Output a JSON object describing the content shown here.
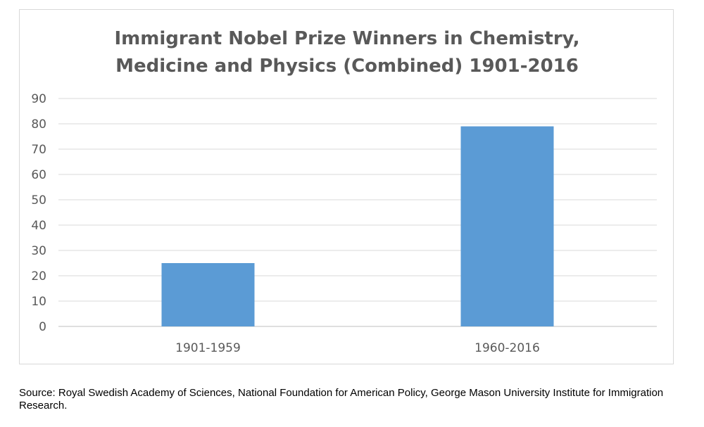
{
  "chart_data": {
    "type": "bar",
    "title_lines": [
      "Immigrant Nobel Prize Winners in Chemistry,",
      "Medicine and Physics (Combined) 1901-2016"
    ],
    "categories": [
      "1901-1959",
      "1960-2016"
    ],
    "values": [
      25,
      79
    ],
    "ylim": [
      0,
      90
    ],
    "yticks": [
      0,
      10,
      20,
      30,
      40,
      50,
      60,
      70,
      80,
      90
    ],
    "xlabel": "",
    "ylabel": "",
    "grid": true,
    "legend": "none",
    "bar_color": "#5b9bd5"
  },
  "source": "Source: Royal Swedish Academy of Sciences, National Foundation for American Policy, George Mason University Institute for Immigration Research."
}
